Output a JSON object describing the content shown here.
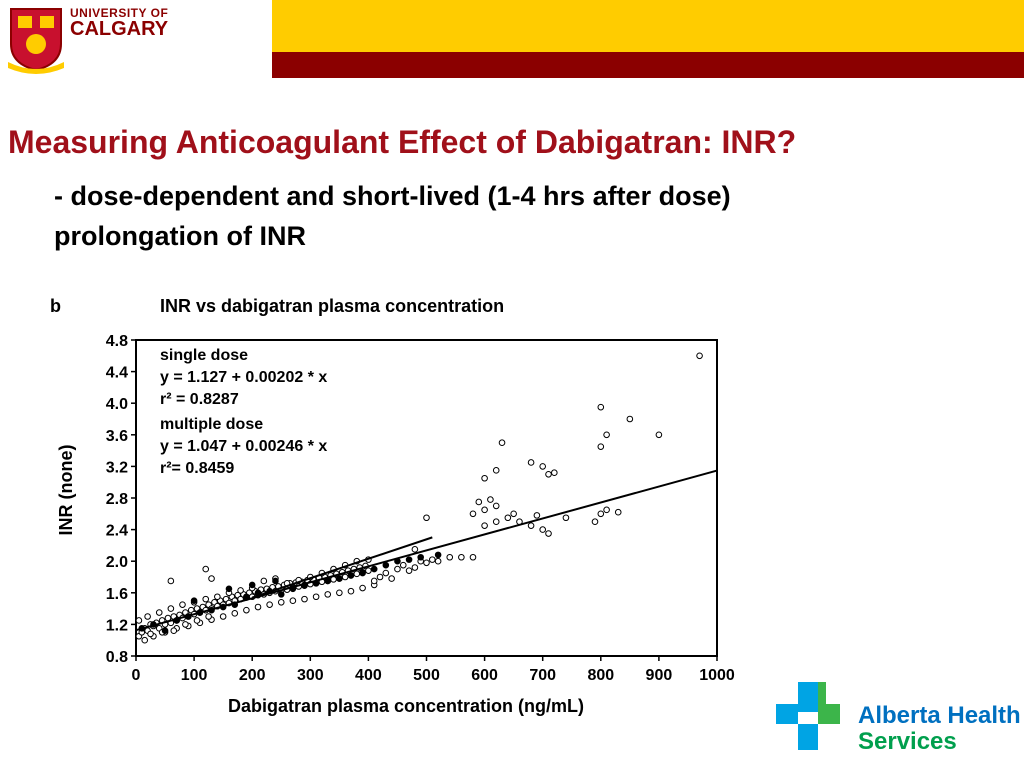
{
  "header": {
    "logo_line1": "UNIVERSITY OF",
    "logo_line2": "CALGARY",
    "colors": {
      "yellow": "#ffcc00",
      "red": "#8b0000"
    }
  },
  "slide": {
    "title": "Measuring Anticoagulant Effect of Dabigatran: INR?",
    "subtitle_line1": "- dose-dependent and short-lived (1-4 hrs after dose)",
    "subtitle_line2": "prolongation of INR"
  },
  "chart_data": {
    "type": "scatter",
    "panel_label": "b",
    "title": "INR vs dabigatran plasma concentration",
    "xlabel": "Dabigatran plasma concentration (ng/mL)",
    "ylabel": "INR (none)",
    "xlim": [
      0,
      1000
    ],
    "ylim": [
      0.8,
      4.8
    ],
    "xticks": [
      "0",
      "100",
      "200",
      "300",
      "400",
      "500",
      "600",
      "700",
      "800",
      "900",
      "1000"
    ],
    "yticks": [
      "0.8",
      "1.2",
      "1.6",
      "2.0",
      "2.4",
      "2.8",
      "3.2",
      "3.6",
      "4.0",
      "4.4",
      "4.8"
    ],
    "annotations": {
      "single_label": "single dose",
      "single_eq": "y = 1.127 + 0.00202 * x",
      "single_r2": "r² = 0.8287",
      "multi_label": "multiple dose",
      "multi_eq": "y = 1.047 + 0.00246 * x",
      "multi_r2": "r²= 0.8459"
    },
    "regression_lines": [
      {
        "intercept": 1.127,
        "slope": 0.00202,
        "x_range": [
          0,
          1000
        ]
      },
      {
        "intercept": 1.047,
        "slope": 0.00246,
        "x_range": [
          200,
          510
        ]
      }
    ],
    "series": [
      {
        "marker": "open-circle",
        "points": [
          [
            5,
            1.05
          ],
          [
            10,
            1.1
          ],
          [
            15,
            1.15
          ],
          [
            20,
            1.12
          ],
          [
            25,
            1.2
          ],
          [
            30,
            1.18
          ],
          [
            35,
            1.22
          ],
          [
            40,
            1.15
          ],
          [
            45,
            1.25
          ],
          [
            50,
            1.2
          ],
          [
            55,
            1.28
          ],
          [
            60,
            1.22
          ],
          [
            65,
            1.3
          ],
          [
            70,
            1.25
          ],
          [
            75,
            1.32
          ],
          [
            80,
            1.28
          ],
          [
            85,
            1.35
          ],
          [
            90,
            1.3
          ],
          [
            95,
            1.38
          ],
          [
            100,
            1.33
          ],
          [
            105,
            1.4
          ],
          [
            110,
            1.35
          ],
          [
            115,
            1.42
          ],
          [
            120,
            1.38
          ],
          [
            125,
            1.45
          ],
          [
            130,
            1.4
          ],
          [
            135,
            1.48
          ],
          [
            140,
            1.43
          ],
          [
            145,
            1.5
          ],
          [
            150,
            1.45
          ],
          [
            155,
            1.52
          ],
          [
            160,
            1.47
          ],
          [
            165,
            1.55
          ],
          [
            170,
            1.5
          ],
          [
            175,
            1.57
          ],
          [
            180,
            1.52
          ],
          [
            185,
            1.58
          ],
          [
            190,
            1.54
          ],
          [
            195,
            1.6
          ],
          [
            200,
            1.55
          ],
          [
            205,
            1.62
          ],
          [
            210,
            1.57
          ],
          [
            215,
            1.64
          ],
          [
            220,
            1.58
          ],
          [
            225,
            1.65
          ],
          [
            230,
            1.6
          ],
          [
            235,
            1.67
          ],
          [
            240,
            1.62
          ],
          [
            245,
            1.68
          ],
          [
            250,
            1.63
          ],
          [
            255,
            1.7
          ],
          [
            260,
            1.64
          ],
          [
            265,
            1.72
          ],
          [
            270,
            1.66
          ],
          [
            275,
            1.73
          ],
          [
            280,
            1.68
          ],
          [
            285,
            1.74
          ],
          [
            290,
            1.69
          ],
          [
            295,
            1.76
          ],
          [
            300,
            1.71
          ],
          [
            305,
            1.77
          ],
          [
            310,
            1.72
          ],
          [
            315,
            1.79
          ],
          [
            320,
            1.74
          ],
          [
            325,
            1.8
          ],
          [
            330,
            1.75
          ],
          [
            335,
            1.82
          ],
          [
            340,
            1.77
          ],
          [
            345,
            1.84
          ],
          [
            350,
            1.78
          ],
          [
            355,
            1.86
          ],
          [
            360,
            1.8
          ],
          [
            365,
            1.88
          ],
          [
            370,
            1.82
          ],
          [
            375,
            1.9
          ],
          [
            380,
            1.84
          ],
          [
            385,
            1.92
          ],
          [
            390,
            1.86
          ],
          [
            395,
            1.94
          ],
          [
            400,
            1.88
          ],
          [
            20,
            1.3
          ],
          [
            40,
            1.35
          ],
          [
            60,
            1.4
          ],
          [
            80,
            1.45
          ],
          [
            100,
            1.48
          ],
          [
            120,
            1.52
          ],
          [
            140,
            1.55
          ],
          [
            160,
            1.6
          ],
          [
            180,
            1.63
          ],
          [
            200,
            1.66
          ],
          [
            30,
            1.05
          ],
          [
            50,
            1.1
          ],
          [
            70,
            1.15
          ],
          [
            90,
            1.18
          ],
          [
            110,
            1.22
          ],
          [
            130,
            1.26
          ],
          [
            150,
            1.3
          ],
          [
            170,
            1.34
          ],
          [
            190,
            1.38
          ],
          [
            210,
            1.42
          ],
          [
            230,
            1.45
          ],
          [
            250,
            1.48
          ],
          [
            270,
            1.5
          ],
          [
            290,
            1.52
          ],
          [
            310,
            1.55
          ],
          [
            330,
            1.58
          ],
          [
            350,
            1.6
          ],
          [
            370,
            1.62
          ],
          [
            390,
            1.66
          ],
          [
            410,
            1.7
          ],
          [
            220,
            1.75
          ],
          [
            240,
            1.78
          ],
          [
            260,
            1.72
          ],
          [
            280,
            1.76
          ],
          [
            300,
            1.8
          ],
          [
            320,
            1.85
          ],
          [
            340,
            1.9
          ],
          [
            360,
            1.95
          ],
          [
            380,
            2.0
          ],
          [
            400,
            2.02
          ],
          [
            410,
            1.75
          ],
          [
            420,
            1.8
          ],
          [
            430,
            1.85
          ],
          [
            440,
            1.78
          ],
          [
            450,
            1.9
          ],
          [
            460,
            1.95
          ],
          [
            470,
            1.88
          ],
          [
            480,
            1.92
          ],
          [
            490,
            2.0
          ],
          [
            500,
            1.98
          ],
          [
            510,
            2.02
          ],
          [
            520,
            2.0
          ],
          [
            540,
            2.05
          ],
          [
            560,
            2.05
          ],
          [
            580,
            2.05
          ],
          [
            480,
            2.15
          ],
          [
            500,
            2.55
          ],
          [
            600,
            2.45
          ],
          [
            620,
            2.5
          ],
          [
            640,
            2.55
          ],
          [
            580,
            2.6
          ],
          [
            600,
            2.65
          ],
          [
            620,
            2.7
          ],
          [
            590,
            2.75
          ],
          [
            610,
            2.78
          ],
          [
            650,
            2.6
          ],
          [
            660,
            2.5
          ],
          [
            680,
            2.45
          ],
          [
            700,
            2.4
          ],
          [
            710,
            2.35
          ],
          [
            740,
            2.55
          ],
          [
            790,
            2.5
          ],
          [
            800,
            2.6
          ],
          [
            810,
            2.65
          ],
          [
            830,
            2.62
          ],
          [
            690,
            2.58
          ],
          [
            680,
            3.25
          ],
          [
            700,
            3.2
          ],
          [
            710,
            3.1
          ],
          [
            720,
            3.12
          ],
          [
            600,
            3.05
          ],
          [
            620,
            3.15
          ],
          [
            630,
            3.5
          ],
          [
            800,
            3.45
          ],
          [
            810,
            3.6
          ],
          [
            850,
            3.8
          ],
          [
            800,
            3.95
          ],
          [
            900,
            3.6
          ],
          [
            970,
            4.6
          ],
          [
            60,
            1.75
          ],
          [
            120,
            1.9
          ],
          [
            130,
            1.78
          ],
          [
            15,
            1.0
          ],
          [
            5,
            1.25
          ],
          [
            25,
            1.08
          ],
          [
            45,
            1.1
          ],
          [
            65,
            1.12
          ],
          [
            85,
            1.2
          ],
          [
            105,
            1.25
          ],
          [
            125,
            1.3
          ]
        ]
      },
      {
        "marker": "filled-circle",
        "points": [
          [
            10,
            1.15
          ],
          [
            30,
            1.2
          ],
          [
            50,
            1.12
          ],
          [
            70,
            1.25
          ],
          [
            90,
            1.3
          ],
          [
            110,
            1.35
          ],
          [
            130,
            1.38
          ],
          [
            150,
            1.42
          ],
          [
            170,
            1.45
          ],
          [
            190,
            1.55
          ],
          [
            210,
            1.6
          ],
          [
            230,
            1.62
          ],
          [
            250,
            1.58
          ],
          [
            270,
            1.65
          ],
          [
            290,
            1.7
          ],
          [
            310,
            1.72
          ],
          [
            330,
            1.75
          ],
          [
            350,
            1.78
          ],
          [
            370,
            1.82
          ],
          [
            390,
            1.85
          ],
          [
            410,
            1.9
          ],
          [
            430,
            1.95
          ],
          [
            450,
            2.0
          ],
          [
            470,
            2.02
          ],
          [
            490,
            2.05
          ],
          [
            520,
            2.08
          ],
          [
            100,
            1.5
          ],
          [
            160,
            1.65
          ],
          [
            200,
            1.7
          ],
          [
            240,
            1.75
          ]
        ]
      }
    ]
  },
  "ahs": {
    "line1": "Alberta Health",
    "line2": "Services",
    "colors": {
      "blue": "#0070c0",
      "green": "#009f4d",
      "cross_blue": "#00a4e4",
      "cross_green": "#3cb54a"
    }
  }
}
